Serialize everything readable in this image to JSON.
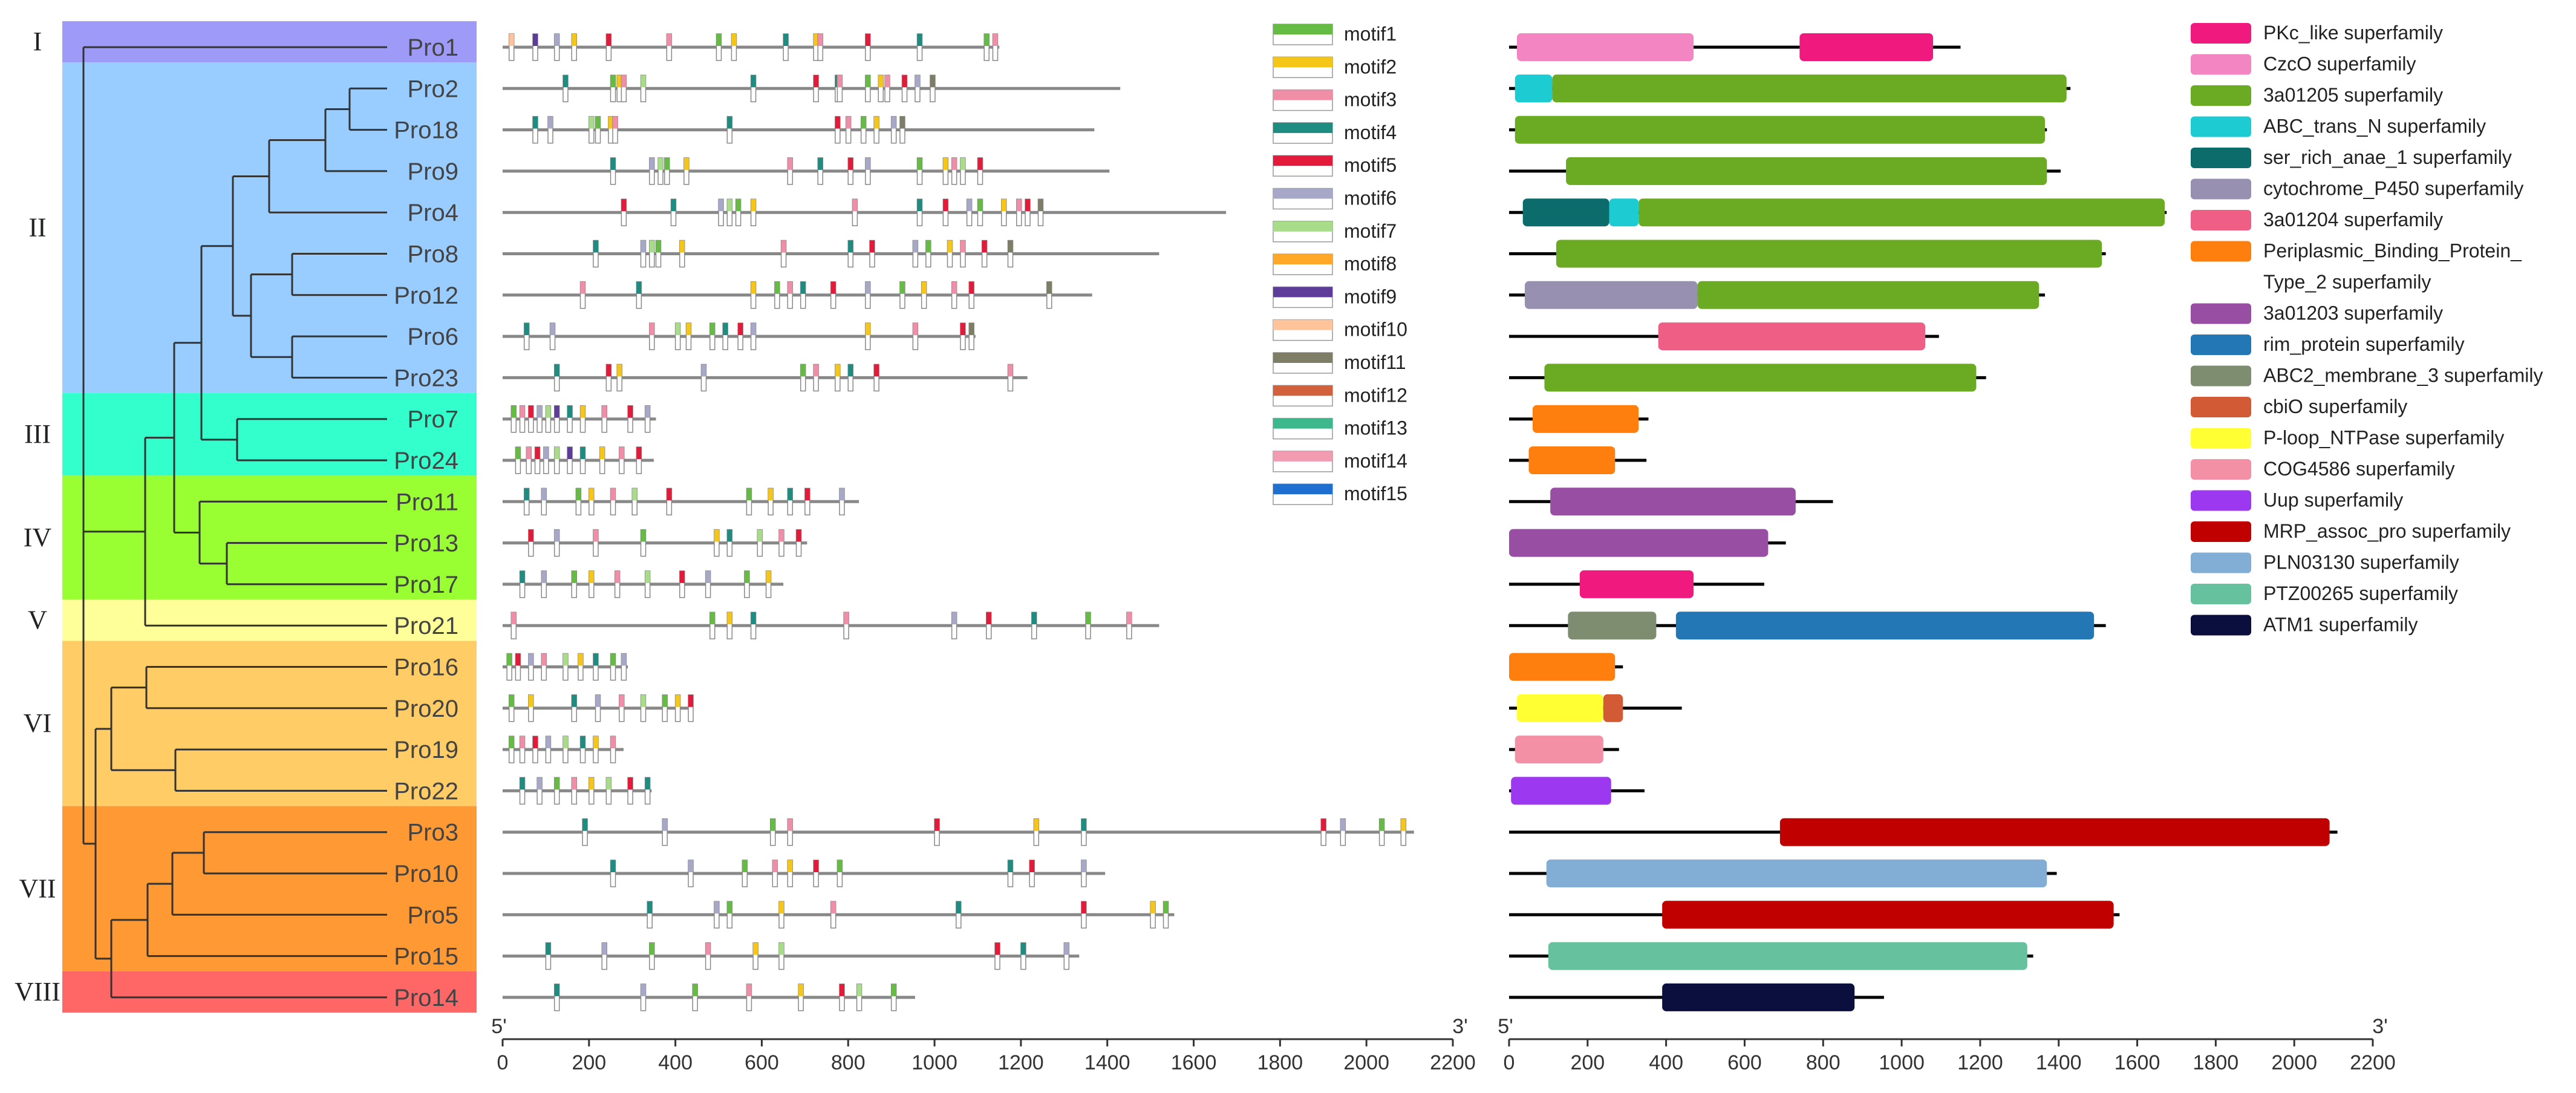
{
  "groups": [
    {
      "label": "I",
      "color": "#9E9AF7",
      "rows": [
        0,
        0
      ]
    },
    {
      "label": "II",
      "color": "#99CCFF",
      "rows": [
        1,
        8
      ]
    },
    {
      "label": "III",
      "color": "#33FFCC",
      "rows": [
        9,
        10
      ]
    },
    {
      "label": "IV",
      "color": "#99FF33",
      "rows": [
        11,
        13
      ]
    },
    {
      "label": "V",
      "color": "#FFFF99",
      "rows": [
        14,
        14
      ]
    },
    {
      "label": "VI",
      "color": "#FFCC66",
      "rows": [
        15,
        18
      ]
    },
    {
      "label": "VII",
      "color": "#FF9933",
      "rows": [
        19,
        22
      ]
    },
    {
      "label": "VIII",
      "color": "#FF6666",
      "rows": [
        23,
        23
      ]
    }
  ],
  "proteins": [
    {
      "name": "Pro1",
      "length": 1150
    },
    {
      "name": "Pro2",
      "length": 1430
    },
    {
      "name": "Pro18",
      "length": 1370
    },
    {
      "name": "Pro9",
      "length": 1405
    },
    {
      "name": "Pro4",
      "length": 1675
    },
    {
      "name": "Pro8",
      "length": 1520
    },
    {
      "name": "Pro12",
      "length": 1365
    },
    {
      "name": "Pro6",
      "length": 1095
    },
    {
      "name": "Pro23",
      "length": 1215
    },
    {
      "name": "Pro7",
      "length": 355
    },
    {
      "name": "Pro24",
      "length": 350
    },
    {
      "name": "Pro11",
      "length": 825
    },
    {
      "name": "Pro13",
      "length": 705
    },
    {
      "name": "Pro17",
      "length": 650
    },
    {
      "name": "Pro21",
      "length": 1520
    },
    {
      "name": "Pro16",
      "length": 290
    },
    {
      "name": "Pro20",
      "length": 440
    },
    {
      "name": "Pro19",
      "length": 280
    },
    {
      "name": "Pro22",
      "length": 345
    },
    {
      "name": "Pro3",
      "length": 2110
    },
    {
      "name": "Pro10",
      "length": 1395
    },
    {
      "name": "Pro5",
      "length": 1555
    },
    {
      "name": "Pro15",
      "length": 1335
    },
    {
      "name": "Pro14",
      "length": 955
    }
  ],
  "motif_axis": {
    "start_label": "5'",
    "end_label": "3'",
    "max": 2200,
    "ticks": [
      0,
      200,
      400,
      600,
      800,
      1000,
      1200,
      1400,
      1600,
      1800,
      2000,
      2200
    ]
  },
  "domain_axis": {
    "start_label": "5'",
    "end_label": "3'",
    "max": 2200,
    "ticks": [
      0,
      200,
      400,
      600,
      800,
      1000,
      1200,
      1400,
      1600,
      1800,
      2000,
      2200
    ]
  },
  "motif_legend": [
    {
      "name": "motif1",
      "color": "#66BB44"
    },
    {
      "name": "motif2",
      "color": "#F5C518"
    },
    {
      "name": "motif3",
      "color": "#F08EA8"
    },
    {
      "name": "motif4",
      "color": "#1E8C80"
    },
    {
      "name": "motif5",
      "color": "#E41A3A"
    },
    {
      "name": "motif6",
      "color": "#A7A7C7"
    },
    {
      "name": "motif7",
      "color": "#A8DC88"
    },
    {
      "name": "motif8",
      "color": "#FFA726"
    },
    {
      "name": "motif9",
      "color": "#5E3C99"
    },
    {
      "name": "motif10",
      "color": "#FFC49A"
    },
    {
      "name": "motif11",
      "color": "#7E7E66"
    },
    {
      "name": "motif12",
      "color": "#D2603C"
    },
    {
      "name": "motif13",
      "color": "#3CB88C"
    },
    {
      "name": "motif14",
      "color": "#F29CB2"
    },
    {
      "name": "motif15",
      "color": "#1F6FD1"
    }
  ],
  "motif_positions": [
    [
      [
        8,
        70
      ],
      [
        9,
        15
      ],
      [
        5,
        120
      ],
      [
        1,
        160
      ],
      [
        4,
        240
      ],
      [
        2,
        380
      ],
      [
        0,
        495
      ],
      [
        1,
        530
      ],
      [
        3,
        650
      ],
      [
        1,
        720
      ],
      [
        2,
        730
      ],
      [
        4,
        840
      ],
      [
        3,
        960
      ],
      [
        0,
        1115
      ],
      [
        2,
        1135
      ]
    ],
    [
      [
        3,
        140
      ],
      [
        0,
        250
      ],
      [
        1,
        265
      ],
      [
        2,
        275
      ],
      [
        6,
        320
      ],
      [
        3,
        575
      ],
      [
        4,
        720
      ],
      [
        3,
        770
      ],
      [
        2,
        775
      ],
      [
        0,
        840
      ],
      [
        1,
        870
      ],
      [
        2,
        885
      ],
      [
        4,
        925
      ],
      [
        5,
        955
      ],
      [
        10,
        990
      ]
    ],
    [
      [
        3,
        70
      ],
      [
        5,
        105
      ],
      [
        6,
        200
      ],
      [
        0,
        215
      ],
      [
        1,
        245
      ],
      [
        2,
        255
      ],
      [
        3,
        520
      ],
      [
        4,
        770
      ],
      [
        2,
        795
      ],
      [
        0,
        830
      ],
      [
        1,
        860
      ],
      [
        5,
        900
      ],
      [
        10,
        920
      ]
    ],
    [
      [
        3,
        250
      ],
      [
        5,
        340
      ],
      [
        6,
        360
      ],
      [
        0,
        375
      ],
      [
        1,
        420
      ],
      [
        2,
        660
      ],
      [
        3,
        730
      ],
      [
        4,
        800
      ],
      [
        5,
        840
      ],
      [
        0,
        960
      ],
      [
        1,
        1020
      ],
      [
        2,
        1040
      ],
      [
        6,
        1060
      ],
      [
        4,
        1100
      ]
    ],
    [
      [
        4,
        275
      ],
      [
        3,
        390
      ],
      [
        5,
        500
      ],
      [
        6,
        520
      ],
      [
        0,
        540
      ],
      [
        1,
        575
      ],
      [
        2,
        810
      ],
      [
        3,
        960
      ],
      [
        4,
        1020
      ],
      [
        5,
        1075
      ],
      [
        0,
        1100
      ],
      [
        1,
        1155
      ],
      [
        2,
        1190
      ],
      [
        4,
        1210
      ],
      [
        10,
        1240
      ]
    ],
    [
      [
        3,
        210
      ],
      [
        5,
        320
      ],
      [
        6,
        340
      ],
      [
        0,
        355
      ],
      [
        1,
        410
      ],
      [
        2,
        645
      ],
      [
        3,
        800
      ],
      [
        4,
        850
      ],
      [
        5,
        950
      ],
      [
        0,
        980
      ],
      [
        1,
        1030
      ],
      [
        2,
        1060
      ],
      [
        4,
        1110
      ],
      [
        10,
        1170
      ]
    ],
    [
      [
        2,
        180
      ],
      [
        3,
        310
      ],
      [
        1,
        575
      ],
      [
        0,
        630
      ],
      [
        2,
        660
      ],
      [
        3,
        690
      ],
      [
        4,
        760
      ],
      [
        5,
        840
      ],
      [
        0,
        920
      ],
      [
        1,
        970
      ],
      [
        2,
        1040
      ],
      [
        4,
        1080
      ],
      [
        10,
        1260
      ]
    ],
    [
      [
        3,
        50
      ],
      [
        5,
        110
      ],
      [
        2,
        340
      ],
      [
        6,
        400
      ],
      [
        1,
        425
      ],
      [
        0,
        480
      ],
      [
        3,
        510
      ],
      [
        4,
        545
      ],
      [
        5,
        575
      ],
      [
        1,
        840
      ],
      [
        2,
        950
      ],
      [
        4,
        1060
      ],
      [
        10,
        1080
      ]
    ],
    [
      [
        3,
        120
      ],
      [
        4,
        240
      ],
      [
        1,
        265
      ],
      [
        5,
        460
      ],
      [
        0,
        690
      ],
      [
        2,
        720
      ],
      [
        1,
        770
      ],
      [
        3,
        800
      ],
      [
        4,
        860
      ],
      [
        2,
        1170
      ]
    ],
    [
      [
        0,
        20
      ],
      [
        2,
        40
      ],
      [
        4,
        60
      ],
      [
        5,
        80
      ],
      [
        6,
        100
      ],
      [
        8,
        120
      ],
      [
        3,
        150
      ],
      [
        1,
        180
      ],
      [
        2,
        230
      ],
      [
        4,
        290
      ],
      [
        5,
        330
      ]
    ],
    [
      [
        0,
        30
      ],
      [
        2,
        55
      ],
      [
        4,
        75
      ],
      [
        5,
        95
      ],
      [
        6,
        120
      ],
      [
        8,
        150
      ],
      [
        3,
        180
      ],
      [
        1,
        225
      ],
      [
        2,
        270
      ],
      [
        4,
        310
      ]
    ],
    [
      [
        3,
        50
      ],
      [
        5,
        90
      ],
      [
        0,
        170
      ],
      [
        1,
        200
      ],
      [
        2,
        250
      ],
      [
        6,
        300
      ],
      [
        4,
        380
      ],
      [
        0,
        565
      ],
      [
        1,
        615
      ],
      [
        3,
        660
      ],
      [
        4,
        700
      ],
      [
        5,
        780
      ]
    ],
    [
      [
        4,
        60
      ],
      [
        5,
        120
      ],
      [
        2,
        210
      ],
      [
        0,
        320
      ],
      [
        1,
        490
      ],
      [
        3,
        520
      ],
      [
        6,
        590
      ],
      [
        2,
        640
      ],
      [
        4,
        680
      ]
    ],
    [
      [
        3,
        40
      ],
      [
        5,
        90
      ],
      [
        0,
        160
      ],
      [
        1,
        200
      ],
      [
        2,
        260
      ],
      [
        6,
        330
      ],
      [
        4,
        410
      ],
      [
        5,
        470
      ],
      [
        0,
        560
      ],
      [
        1,
        610
      ]
    ],
    [
      [
        2,
        20
      ],
      [
        0,
        480
      ],
      [
        1,
        520
      ],
      [
        3,
        575
      ],
      [
        2,
        790
      ],
      [
        5,
        1040
      ],
      [
        4,
        1120
      ],
      [
        3,
        1225
      ],
      [
        0,
        1350
      ],
      [
        2,
        1445
      ]
    ],
    [
      [
        0,
        10
      ],
      [
        4,
        30
      ],
      [
        5,
        60
      ],
      [
        2,
        90
      ],
      [
        6,
        140
      ],
      [
        1,
        175
      ],
      [
        3,
        210
      ],
      [
        0,
        250
      ],
      [
        5,
        275
      ]
    ],
    [
      [
        0,
        15
      ],
      [
        1,
        60
      ],
      [
        3,
        160
      ],
      [
        5,
        215
      ],
      [
        2,
        270
      ],
      [
        6,
        320
      ],
      [
        0,
        370
      ],
      [
        1,
        400
      ],
      [
        4,
        430
      ]
    ],
    [
      [
        0,
        15
      ],
      [
        2,
        40
      ],
      [
        4,
        70
      ],
      [
        5,
        100
      ],
      [
        6,
        140
      ],
      [
        3,
        180
      ],
      [
        1,
        210
      ],
      [
        2,
        250
      ]
    ],
    [
      [
        3,
        40
      ],
      [
        5,
        80
      ],
      [
        0,
        120
      ],
      [
        2,
        160
      ],
      [
        1,
        200
      ],
      [
        6,
        240
      ],
      [
        4,
        290
      ],
      [
        3,
        330
      ]
    ],
    [
      [
        3,
        185
      ],
      [
        5,
        370
      ],
      [
        0,
        620
      ],
      [
        2,
        660
      ],
      [
        4,
        1000
      ],
      [
        1,
        1230
      ],
      [
        3,
        1340
      ],
      [
        4,
        1895
      ],
      [
        5,
        1940
      ],
      [
        0,
        2030
      ],
      [
        1,
        2080
      ]
    ],
    [
      [
        3,
        250
      ],
      [
        5,
        430
      ],
      [
        0,
        555
      ],
      [
        2,
        625
      ],
      [
        1,
        660
      ],
      [
        4,
        720
      ],
      [
        0,
        775
      ],
      [
        3,
        1170
      ],
      [
        4,
        1220
      ],
      [
        5,
        1340
      ]
    ],
    [
      [
        3,
        335
      ],
      [
        5,
        490
      ],
      [
        0,
        520
      ],
      [
        1,
        640
      ],
      [
        2,
        760
      ],
      [
        3,
        1050
      ],
      [
        4,
        1340
      ],
      [
        1,
        1500
      ],
      [
        0,
        1530
      ]
    ],
    [
      [
        3,
        100
      ],
      [
        5,
        230
      ],
      [
        0,
        340
      ],
      [
        2,
        470
      ],
      [
        1,
        580
      ],
      [
        6,
        640
      ],
      [
        4,
        1140
      ],
      [
        3,
        1200
      ],
      [
        5,
        1300
      ]
    ],
    [
      [
        3,
        120
      ],
      [
        5,
        320
      ],
      [
        0,
        440
      ],
      [
        2,
        565
      ],
      [
        1,
        685
      ],
      [
        4,
        780
      ],
      [
        6,
        820
      ],
      [
        0,
        900
      ]
    ]
  ],
  "domain_legend": [
    {
      "name": "PKc_like superfamily",
      "color": "#F0197E"
    },
    {
      "name": "CzcO superfamily",
      "color": "#F386C2"
    },
    {
      "name": "3a01205 superfamily",
      "color": "#6BAA23"
    },
    {
      "name": "ABC_trans_N superfamily",
      "color": "#1DCBD3"
    },
    {
      "name": "ser_rich_anae_1 superfamily",
      "color": "#0C6B6B"
    },
    {
      "name": "cytochrome_P450 superfamily",
      "color": "#9890B0"
    },
    {
      "name": "3a01204 superfamily",
      "color": "#EE5E85"
    },
    {
      "name": "Periplasmic_Binding_Protein_",
      "name2": "Type_2 superfamily",
      "color": "#FF7F0E"
    },
    {
      "name": "3a01203 superfamily",
      "color": "#984EA3"
    },
    {
      "name": "rim_protein superfamily",
      "color": "#2277B4"
    },
    {
      "name": "ABC2_membrane_3 superfamily",
      "color": "#7E8C70"
    },
    {
      "name": "cbiO superfamily",
      "color": "#D25A35"
    },
    {
      "name": "P-loop_NTPase superfamily",
      "color": "#FFFF33"
    },
    {
      "name": "COG4586 superfamily",
      "color": "#F390A6"
    },
    {
      "name": "Uup superfamily",
      "color": "#9B38F0"
    },
    {
      "name": "MRP_assoc_pro superfamily",
      "color": "#C00000"
    },
    {
      "name": "PLN03130 superfamily",
      "color": "#82AED6"
    },
    {
      "name": "PTZ00265 superfamily",
      "color": "#66C29E"
    },
    {
      "name": "ATM1 superfamily",
      "color": "#0A0F3D"
    }
  ],
  "domains": [
    {
      "length": 1150,
      "parts": [
        [
          1,
          20,
          470
        ],
        [
          0,
          740,
          1080
        ]
      ]
    },
    {
      "length": 1430,
      "parts": [
        [
          3,
          15,
          110
        ],
        [
          2,
          110,
          1420
        ]
      ]
    },
    {
      "length": 1370,
      "parts": [
        [
          2,
          15,
          1365
        ]
      ]
    },
    {
      "length": 1405,
      "parts": [
        [
          2,
          145,
          1370
        ]
      ]
    },
    {
      "length": 1675,
      "parts": [
        [
          4,
          35,
          255
        ],
        [
          3,
          255,
          330
        ],
        [
          2,
          330,
          1670
        ]
      ]
    },
    {
      "length": 1520,
      "parts": [
        [
          2,
          120,
          1510
        ]
      ]
    },
    {
      "length": 1365,
      "parts": [
        [
          5,
          40,
          480
        ],
        [
          2,
          480,
          1350
        ]
      ]
    },
    {
      "length": 1095,
      "parts": [
        [
          6,
          380,
          1060
        ]
      ]
    },
    {
      "length": 1215,
      "parts": [
        [
          2,
          90,
          1190
        ]
      ]
    },
    {
      "length": 355,
      "parts": [
        [
          7,
          60,
          330
        ]
      ]
    },
    {
      "length": 350,
      "parts": [
        [
          7,
          50,
          270
        ]
      ]
    },
    {
      "length": 825,
      "parts": [
        [
          8,
          105,
          730
        ]
      ]
    },
    {
      "length": 705,
      "parts": [
        [
          8,
          0,
          660
        ]
      ]
    },
    {
      "length": 650,
      "parts": [
        [
          0,
          180,
          470
        ]
      ]
    },
    {
      "length": 1520,
      "parts": [
        [
          10,
          150,
          375
        ],
        [
          9,
          425,
          1490
        ]
      ]
    },
    {
      "length": 290,
      "parts": [
        [
          7,
          0,
          270
        ]
      ]
    },
    {
      "length": 440,
      "parts": [
        [
          12,
          20,
          240
        ],
        [
          11,
          240,
          290
        ]
      ]
    },
    {
      "length": 280,
      "parts": [
        [
          13,
          15,
          240
        ]
      ]
    },
    {
      "length": 345,
      "parts": [
        [
          14,
          5,
          260
        ]
      ]
    },
    {
      "length": 2110,
      "parts": [
        [
          15,
          690,
          2090
        ]
      ]
    },
    {
      "length": 1395,
      "parts": [
        [
          16,
          95,
          1370
        ]
      ]
    },
    {
      "length": 1555,
      "parts": [
        [
          15,
          390,
          1540
        ]
      ]
    },
    {
      "length": 1335,
      "parts": [
        [
          17,
          100,
          1320
        ]
      ]
    },
    {
      "length": 955,
      "parts": [
        [
          18,
          390,
          880
        ]
      ]
    }
  ]
}
